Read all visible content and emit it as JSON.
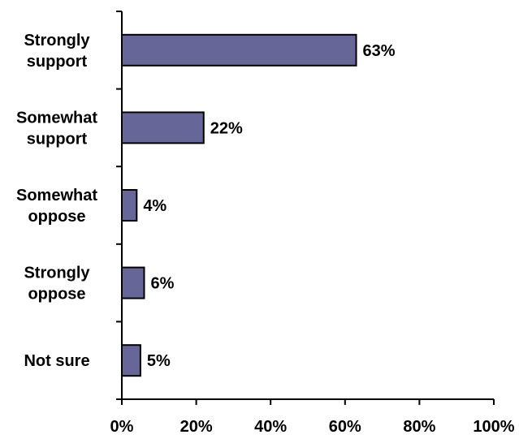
{
  "chart_data": {
    "type": "bar",
    "orientation": "horizontal",
    "categories": [
      [
        "Strongly",
        "support"
      ],
      [
        "Somewhat",
        "support"
      ],
      [
        "Somewhat",
        "oppose"
      ],
      [
        "Strongly",
        "oppose"
      ],
      [
        "Not sure"
      ]
    ],
    "values": [
      63,
      22,
      4,
      6,
      5
    ],
    "value_labels": [
      "63%",
      "22%",
      "4%",
      "6%",
      "5%"
    ],
    "xlim": [
      0,
      100
    ],
    "xticks": [
      0,
      20,
      40,
      60,
      80,
      100
    ],
    "xtick_labels": [
      "0%",
      "20%",
      "40%",
      "60%",
      "80%",
      "100%"
    ],
    "grid": false,
    "legend": "none",
    "colors": {
      "bar_fill": "#666699",
      "bar_stroke": "#000000",
      "axis": "#000000"
    }
  }
}
